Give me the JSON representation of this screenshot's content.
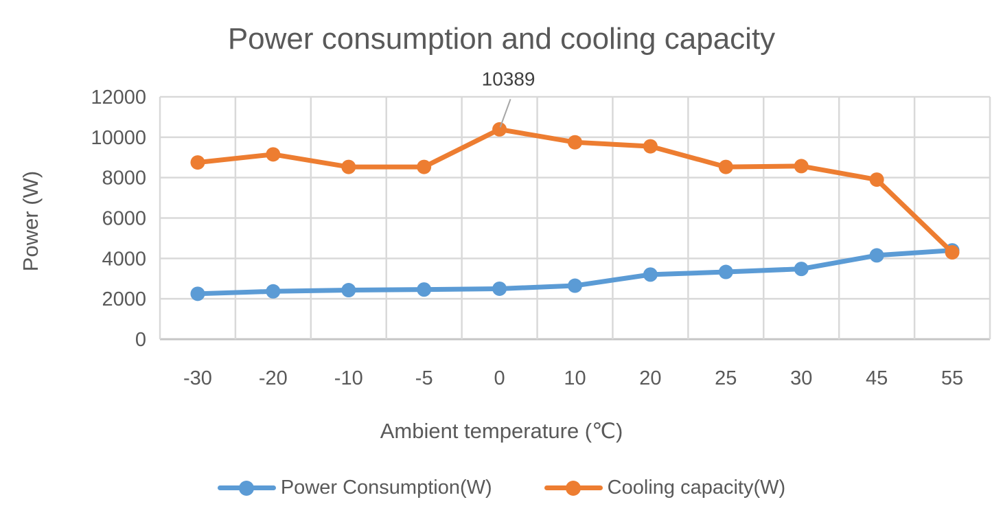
{
  "chart_data": {
    "type": "line",
    "title": "Power consumption and cooling capacity",
    "xlabel": "Ambient temperature (℃)",
    "ylabel": "Power (W)",
    "categories": [
      "-30",
      "-20",
      "-10",
      "-5",
      "0",
      "10",
      "20",
      "25",
      "30",
      "45",
      "55"
    ],
    "y_ticks": [
      0,
      2000,
      4000,
      6000,
      8000,
      10000,
      12000
    ],
    "ylim": [
      0,
      12000
    ],
    "grid": true,
    "legend_position": "bottom",
    "series": [
      {
        "name": "Power Consumption(W)",
        "color": "#5B9BD5",
        "values": [
          2250,
          2370,
          2430,
          2460,
          2500,
          2650,
          3200,
          3330,
          3480,
          4150,
          4400
        ]
      },
      {
        "name": "Cooling capacity(W)",
        "color": "#ED7D31",
        "values": [
          8750,
          9150,
          8530,
          8530,
          10389,
          9750,
          9550,
          8530,
          8570,
          7900,
          4300
        ]
      }
    ],
    "data_labels": [
      {
        "series": 1,
        "index": 4,
        "text": "10389"
      }
    ]
  },
  "colors": {
    "grid": "#D9D9D9",
    "axis_line": "#C6C6C6",
    "axis_text": "#595959",
    "title_text": "#595959",
    "data_label_text": "#404040",
    "leader_line": "#A6A6A6",
    "background": "#FFFFFF"
  }
}
